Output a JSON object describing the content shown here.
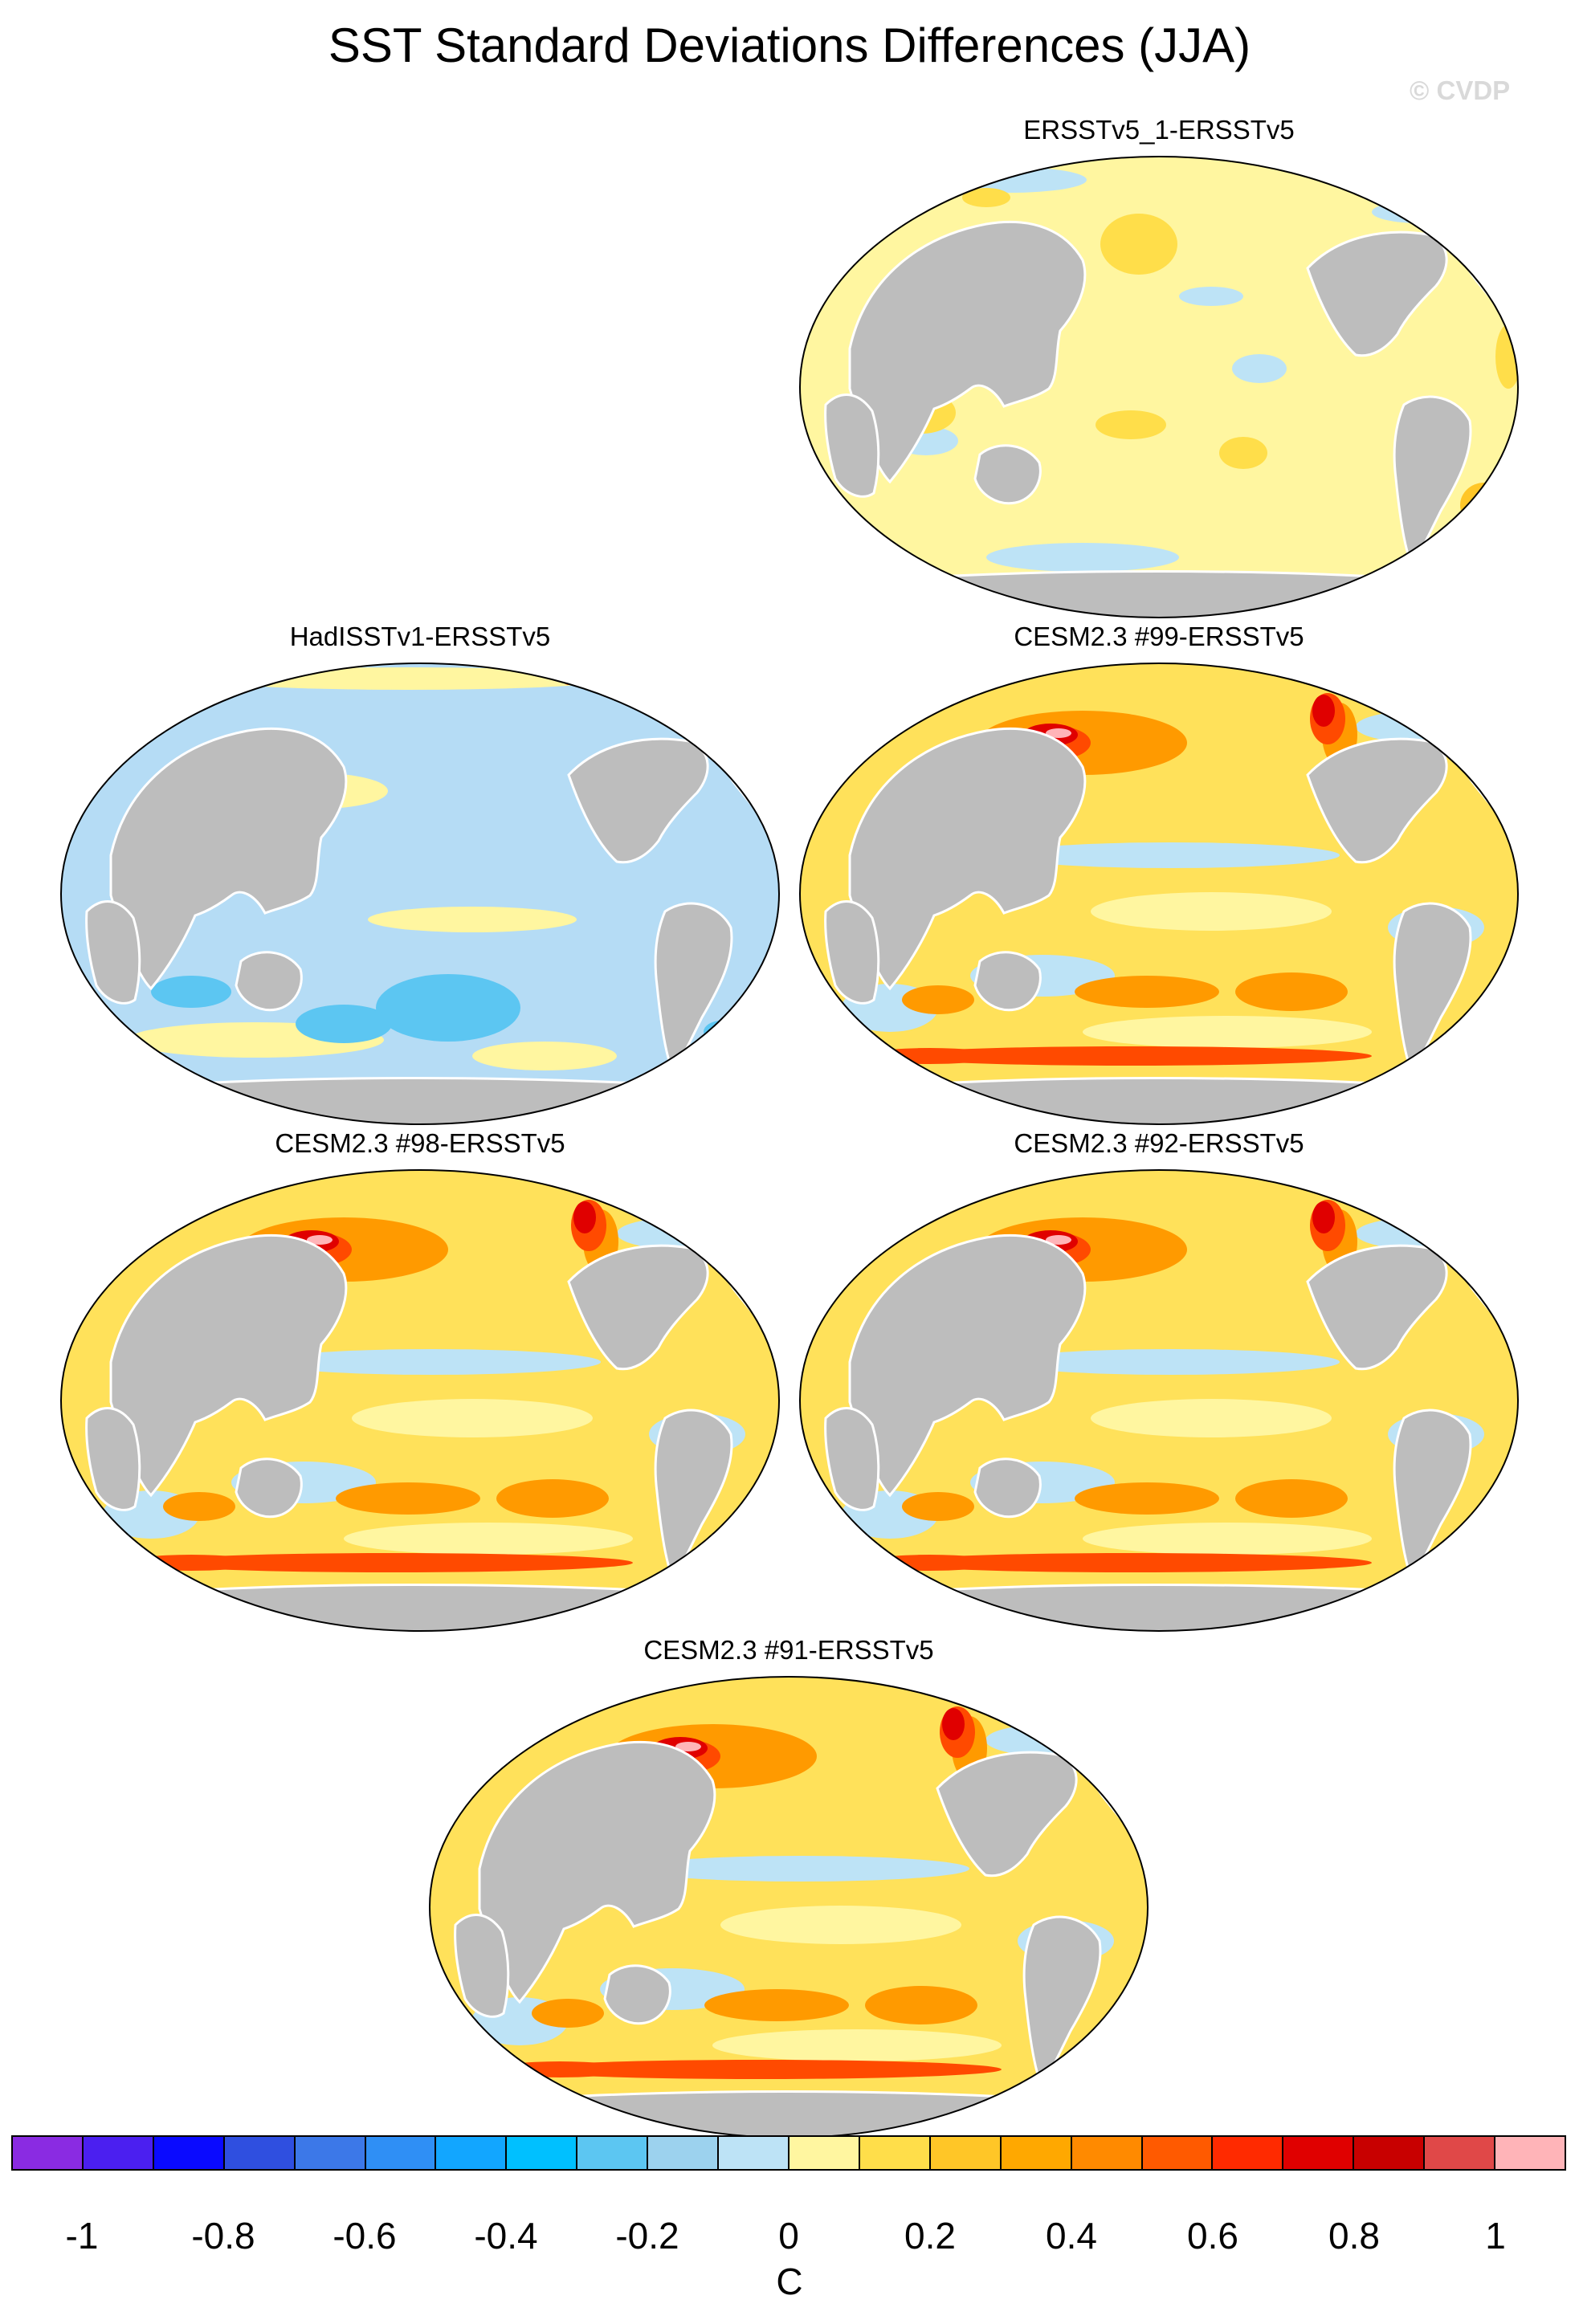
{
  "title": "SST Standard Deviations Differences (JJA)",
  "watermark": "© CVDP",
  "panels": [
    {
      "title": "ERSSTv5_1-ERSSTv5",
      "pattern": "near-zero"
    },
    {
      "title": "HadISSTv1-ERSSTv5",
      "pattern": "negative"
    },
    {
      "title": "CESM2.3 #99-ERSSTv5",
      "pattern": "positive"
    },
    {
      "title": "CESM2.3 #98-ERSSTv5",
      "pattern": "positive"
    },
    {
      "title": "CESM2.3 #92-ERSSTv5",
      "pattern": "positive"
    },
    {
      "title": "CESM2.3 #91-ERSSTv5",
      "pattern": "positive"
    }
  ],
  "colorbar": {
    "unit": "C",
    "labels": [
      "-1",
      "-0.8",
      "-0.6",
      "-0.4",
      "-0.2",
      "0",
      "0.2",
      "0.4",
      "0.6",
      "0.8",
      "1"
    ],
    "colors": [
      "#8a2be2",
      "#4b1ff0",
      "#0a0aff",
      "#2f4fe0",
      "#3c78e8",
      "#2f8ff5",
      "#12a6ff",
      "#00c0ff",
      "#5cc6f2",
      "#9cd2ee",
      "#bde3f6",
      "#fff6a0",
      "#ffde4a",
      "#ffc627",
      "#ffa800",
      "#ff8a00",
      "#ff5a00",
      "#ff2a00",
      "#e00000",
      "#c80000",
      "#e04848",
      "#ffb4b8"
    ]
  },
  "colors": {
    "land": "#bdbdbd",
    "near_zero": "#fff6a0",
    "negative": "#b5dcf5",
    "positive": "#ffd23c"
  }
}
